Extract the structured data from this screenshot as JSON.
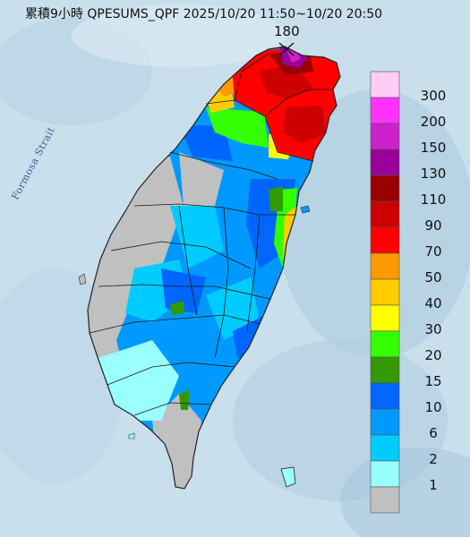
{
  "title": "累積9小時 QPESUMS_QPF 2025/10/20 11:50~10/20 20:50",
  "peak_value": "180",
  "sea_label": "Formosa Strait",
  "legend": [
    {
      "label": "300",
      "color": "#ffccf5"
    },
    {
      "label": "200",
      "color": "#ff33ff"
    },
    {
      "label": "150",
      "color": "#cc22cc"
    },
    {
      "label": "130",
      "color": "#990099"
    },
    {
      "label": "110",
      "color": "#990000"
    },
    {
      "label": "90",
      "color": "#cc0000"
    },
    {
      "label": "70",
      "color": "#ff0000"
    },
    {
      "label": "50",
      "color": "#ff9900"
    },
    {
      "label": "40",
      "color": "#ffcc00"
    },
    {
      "label": "30",
      "color": "#ffff00"
    },
    {
      "label": "20",
      "color": "#33ff00"
    },
    {
      "label": "15",
      "color": "#339900"
    },
    {
      "label": "10",
      "color": "#0066ff"
    },
    {
      "label": "6",
      "color": "#0099ff"
    },
    {
      "label": "2",
      "color": "#00ccff"
    },
    {
      "label": "1",
      "color": "#99ffff"
    },
    {
      "label": "",
      "color": "#c0c0c0"
    }
  ]
}
